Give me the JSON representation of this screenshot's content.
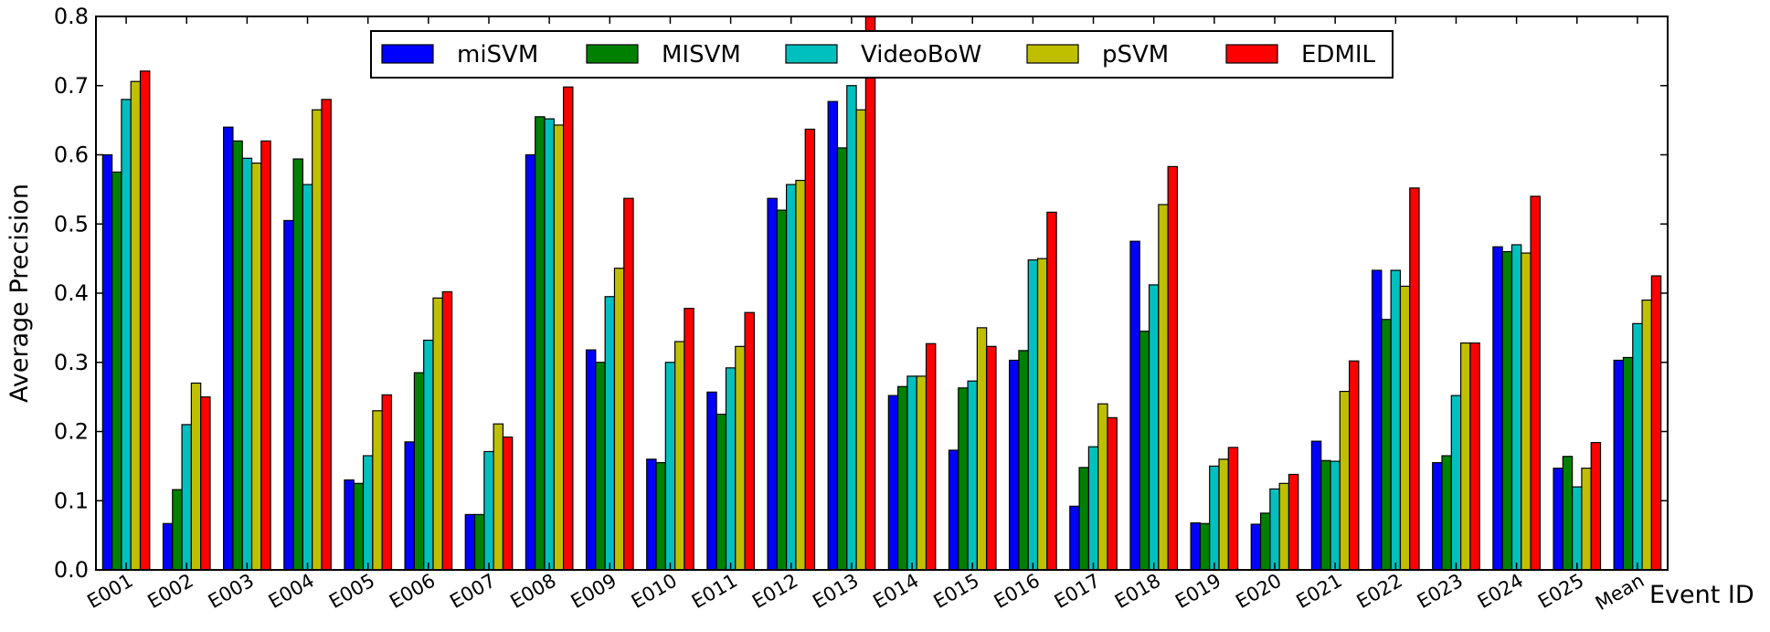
{
  "chart_data": {
    "type": "bar",
    "title": "",
    "xlabel": "Event ID",
    "ylabel": "Average Precision",
    "ylim": [
      0,
      0.8
    ],
    "yticks": [
      "0.0",
      "0.1",
      "0.2",
      "0.3",
      "0.4",
      "0.5",
      "0.6",
      "0.7",
      "0.8"
    ],
    "grid": false,
    "legend_position": "top-center",
    "categories": [
      "E001",
      "E002",
      "E003",
      "E004",
      "E005",
      "E006",
      "E007",
      "E008",
      "E009",
      "E010",
      "E011",
      "E012",
      "E013",
      "E014",
      "E015",
      "E016",
      "E017",
      "E018",
      "E019",
      "E020",
      "E021",
      "E022",
      "E023",
      "E024",
      "E025",
      "Mean"
    ],
    "series": [
      {
        "name": "miSVM",
        "color": "#0000ff",
        "values": [
          0.6,
          0.067,
          0.64,
          0.505,
          0.13,
          0.185,
          0.08,
          0.6,
          0.318,
          0.16,
          0.257,
          0.537,
          0.677,
          0.252,
          0.173,
          0.303,
          0.092,
          0.475,
          0.068,
          0.066,
          0.186,
          0.433,
          0.155,
          0.467,
          0.147,
          0.303
        ]
      },
      {
        "name": "MISVM",
        "color": "#008000",
        "values": [
          0.575,
          0.116,
          0.62,
          0.594,
          0.125,
          0.285,
          0.08,
          0.655,
          0.3,
          0.155,
          0.225,
          0.52,
          0.61,
          0.265,
          0.263,
          0.317,
          0.148,
          0.345,
          0.067,
          0.082,
          0.158,
          0.362,
          0.165,
          0.46,
          0.164,
          0.307
        ]
      },
      {
        "name": "VideoBoW",
        "color": "#00bfbf",
        "values": [
          0.68,
          0.21,
          0.595,
          0.557,
          0.165,
          0.332,
          0.171,
          0.652,
          0.395,
          0.3,
          0.292,
          0.557,
          0.7,
          0.28,
          0.273,
          0.448,
          0.178,
          0.412,
          0.15,
          0.117,
          0.157,
          0.433,
          0.252,
          0.47,
          0.12,
          0.356
        ]
      },
      {
        "name": "pSVM",
        "color": "#bfbf00",
        "values": [
          0.706,
          0.27,
          0.588,
          0.665,
          0.23,
          0.393,
          0.211,
          0.643,
          0.436,
          0.33,
          0.323,
          0.563,
          0.665,
          0.28,
          0.35,
          0.45,
          0.24,
          0.528,
          0.16,
          0.125,
          0.258,
          0.41,
          0.328,
          0.458,
          0.147,
          0.39
        ]
      },
      {
        "name": "EDMIL",
        "color": "#ff0000",
        "values": [
          0.721,
          0.25,
          0.62,
          0.68,
          0.253,
          0.402,
          0.192,
          0.698,
          0.537,
          0.378,
          0.372,
          0.637,
          0.8,
          0.327,
          0.323,
          0.517,
          0.22,
          0.583,
          0.177,
          0.138,
          0.302,
          0.552,
          0.328,
          0.54,
          0.184,
          0.425
        ]
      }
    ]
  }
}
